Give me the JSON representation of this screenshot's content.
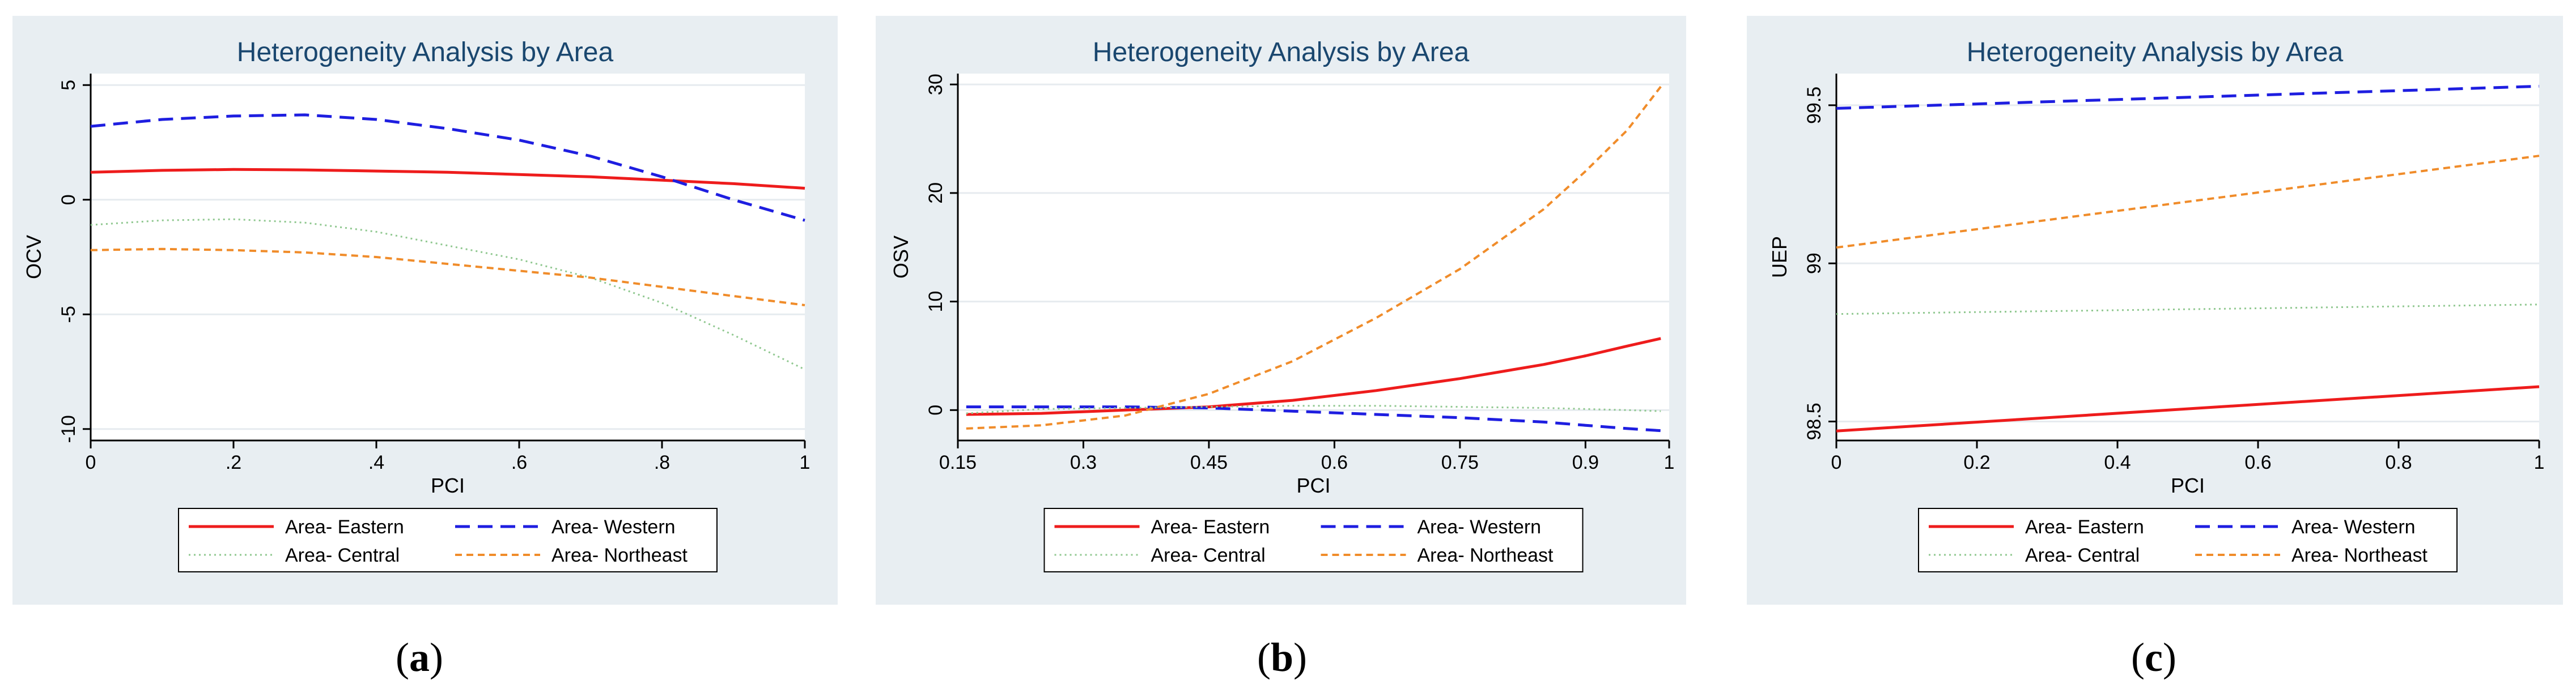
{
  "panel_captions": [
    "a",
    "b",
    "c"
  ],
  "colors": {
    "panel_bg": "#e8eef2",
    "plot_bg": "#ffffff",
    "grid": "#e6ebef",
    "title": "#1a476f",
    "eastern": "#ee1c1c",
    "western": "#1e1ee0",
    "central": "#90c890",
    "northeast": "#f08c2a"
  },
  "chart_data": [
    {
      "type": "line",
      "title": "Heterogeneity Analysis by Area",
      "xlabel": "PCI",
      "ylabel": "OCV",
      "xlim": [
        0,
        1
      ],
      "ylim": [
        -10.5,
        5.5
      ],
      "xticks": [
        0,
        0.2,
        0.4,
        0.6,
        0.8,
        1
      ],
      "xtick_labels": [
        "0",
        ".2",
        ".4",
        ".6",
        ".8",
        "1"
      ],
      "yticks": [
        -10,
        -5,
        0,
        5
      ],
      "ytick_labels": [
        "-10",
        "-5",
        "0",
        "5"
      ],
      "x": [
        0,
        0.1,
        0.2,
        0.3,
        0.4,
        0.5,
        0.6,
        0.7,
        0.8,
        0.9,
        1
      ],
      "series": [
        {
          "name": "Area- Eastern",
          "style": "solid",
          "values": [
            1.2,
            1.28,
            1.32,
            1.3,
            1.25,
            1.2,
            1.1,
            1.0,
            0.85,
            0.7,
            0.5
          ]
        },
        {
          "name": "Area- Western",
          "style": "dash",
          "values": [
            3.2,
            3.5,
            3.65,
            3.7,
            3.5,
            3.1,
            2.6,
            1.9,
            1.0,
            0.0,
            -0.9
          ]
        },
        {
          "name": "Area- Central",
          "style": "dot",
          "values": [
            -1.1,
            -0.9,
            -0.85,
            -1.0,
            -1.4,
            -2.0,
            -2.6,
            -3.4,
            -4.5,
            -5.9,
            -7.4
          ]
        },
        {
          "name": "Area- Northeast",
          "style": "shortdash",
          "values": [
            -2.2,
            -2.15,
            -2.2,
            -2.3,
            -2.5,
            -2.8,
            -3.1,
            -3.4,
            -3.8,
            -4.2,
            -4.6
          ]
        }
      ],
      "legend": [
        "Area- Eastern",
        "Area- Western",
        "Area- Central",
        "Area- Northeast"
      ]
    },
    {
      "type": "line",
      "title": "Heterogeneity Analysis by Area",
      "xlabel": "PCI",
      "ylabel": "OSV",
      "xlim": [
        0.15,
        1
      ],
      "ylim": [
        -2.8,
        31
      ],
      "xticks": [
        0.15,
        0.3,
        0.45,
        0.6,
        0.75,
        0.9,
        1
      ],
      "xtick_labels": [
        "0.15",
        "0.3",
        "0.45",
        "0.6",
        "0.75",
        "0.9",
        "1"
      ],
      "yticks": [
        0,
        10,
        20,
        30
      ],
      "ytick_labels": [
        "0",
        "10",
        "20",
        "30"
      ],
      "x": [
        0.16,
        0.25,
        0.35,
        0.45,
        0.55,
        0.65,
        0.75,
        0.85,
        0.9,
        0.95,
        0.99
      ],
      "series": [
        {
          "name": "Area- Eastern",
          "style": "solid",
          "values": [
            -0.4,
            -0.3,
            0.0,
            0.3,
            0.9,
            1.8,
            2.9,
            4.2,
            5.0,
            5.9,
            6.6
          ]
        },
        {
          "name": "Area- Western",
          "style": "dash",
          "values": [
            0.3,
            0.3,
            0.3,
            0.2,
            -0.1,
            -0.4,
            -0.7,
            -1.1,
            -1.4,
            -1.7,
            -1.9
          ]
        },
        {
          "name": "Area- Central",
          "style": "dot",
          "values": [
            -0.3,
            0.1,
            0.2,
            0.3,
            0.4,
            0.4,
            0.3,
            0.2,
            0.1,
            0.0,
            -0.1
          ]
        },
        {
          "name": "Area- Northeast",
          "style": "shortdash",
          "values": [
            -1.7,
            -1.4,
            -0.5,
            1.5,
            4.5,
            8.5,
            13.0,
            18.5,
            22.0,
            25.8,
            29.8
          ]
        }
      ],
      "legend": [
        "Area- Eastern",
        "Area- Western",
        "Area- Central",
        "Area- Northeast"
      ]
    },
    {
      "type": "line",
      "title": "Heterogeneity Analysis by Area",
      "xlabel": "PCI",
      "ylabel": "UEP",
      "xlim": [
        0,
        1
      ],
      "ylim": [
        98.44,
        99.6
      ],
      "xticks": [
        0,
        0.2,
        0.4,
        0.6,
        0.8,
        1
      ],
      "xtick_labels": [
        "0",
        "0.2",
        "0.4",
        "0.6",
        "0.8",
        "1"
      ],
      "yticks": [
        98.5,
        99,
        99.5
      ],
      "ytick_labels": [
        "98.5",
        "99",
        "99.5"
      ],
      "x": [
        0,
        1
      ],
      "series": [
        {
          "name": "Area- Eastern",
          "style": "solid",
          "values": [
            98.47,
            98.61
          ]
        },
        {
          "name": "Area- Western",
          "style": "dash",
          "values": [
            99.49,
            99.56
          ]
        },
        {
          "name": "Area- Central",
          "style": "dot",
          "values": [
            98.84,
            98.87
          ]
        },
        {
          "name": "Area- Northeast",
          "style": "shortdash",
          "values": [
            99.05,
            99.34
          ]
        }
      ],
      "legend": [
        "Area- Eastern",
        "Area- Western",
        "Area- Central",
        "Area- Northeast"
      ]
    }
  ]
}
